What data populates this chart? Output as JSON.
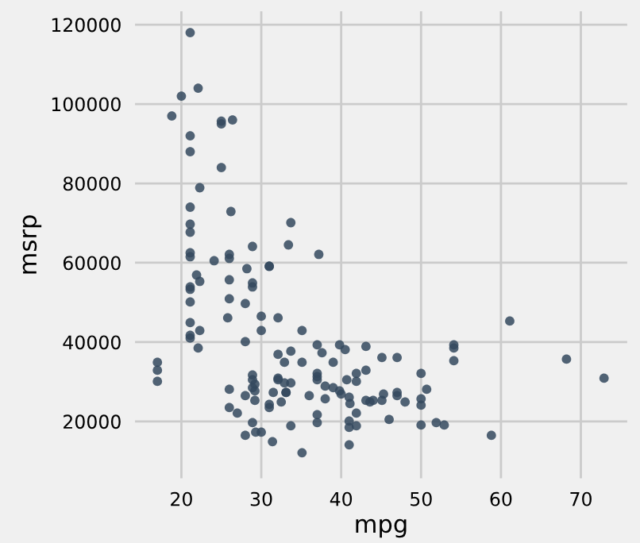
{
  "chart_data": {
    "type": "scatter",
    "xlabel": "mpg",
    "ylabel": "msrp",
    "color": "#34495e",
    "marker": "circle",
    "grid": true,
    "legend": false,
    "xlim": [
      14.2,
      75.8
    ],
    "ylim": [
      5650,
      123350
    ],
    "xticks": [
      20,
      30,
      40,
      50,
      60,
      70
    ],
    "yticks": [
      20000,
      40000,
      60000,
      80000,
      100000,
      120000
    ],
    "x": [
      21.1,
      22.1,
      20,
      18.8,
      25,
      25,
      26.4,
      21.1,
      21.1,
      25,
      22.3,
      21.1,
      26.2,
      21.1,
      21.1,
      33.7,
      33.4,
      21.1,
      21.1,
      28.9,
      37.2,
      24.1,
      26,
      26,
      31,
      31,
      21.9,
      22.3,
      26,
      21.1,
      21.1,
      28.2,
      28.9,
      28.9,
      21.1,
      26,
      28,
      21.1,
      25.8,
      30,
      32.1,
      21.1,
      21.1,
      22.3,
      30,
      22.1,
      28,
      35.1,
      37,
      37.6,
      39.8,
      40.5,
      43.1,
      32.1,
      33.7,
      32.9,
      35.1,
      39,
      17,
      17,
      17,
      28.9,
      28.9,
      29.2,
      28.9,
      32.1,
      32.1,
      32.9,
      33.7,
      37,
      37,
      37,
      38,
      39,
      39.8,
      40.7,
      41.9,
      41.9,
      43.1,
      26,
      28,
      29.2,
      29.2,
      31.5,
      33.1,
      33.1,
      36,
      38,
      40,
      41,
      41.1,
      43.1,
      43.6,
      44,
      31,
      31,
      32.5,
      26,
      27,
      37,
      37,
      41,
      41,
      41.9,
      41.9,
      28.9,
      30,
      29.3,
      28,
      31.4,
      33.7,
      41,
      35.1,
      61.1,
      54.1,
      54.1,
      54.1,
      45.1,
      47,
      50,
      50.7,
      50,
      50,
      47,
      47,
      48,
      45.3,
      45.1,
      46,
      50,
      51.9,
      52.9,
      58.8,
      68.2,
      72.9
    ],
    "values": [
      118000,
      104000,
      102000,
      97000,
      95700,
      95000,
      96000,
      92000,
      88000,
      84000,
      78900,
      74000,
      72900,
      69700,
      67700,
      70100,
      64500,
      62500,
      61500,
      64100,
      62100,
      60500,
      62100,
      61100,
      59100,
      59100,
      56900,
      55300,
      55700,
      53900,
      53300,
      58500,
      54900,
      53900,
      50100,
      50900,
      49700,
      44900,
      46100,
      46500,
      46100,
      41700,
      41000,
      42900,
      42900,
      38500,
      40100,
      42900,
      39300,
      37300,
      39300,
      38100,
      38900,
      36900,
      37700,
      34900,
      34900,
      34900,
      34900,
      32900,
      30100,
      31700,
      30500,
      29400,
      28500,
      30900,
      30500,
      29700,
      29700,
      32100,
      31300,
      30500,
      28900,
      28500,
      27700,
      30500,
      30100,
      32100,
      32900,
      28100,
      26500,
      27700,
      25300,
      27300,
      27300,
      27300,
      26500,
      25700,
      26900,
      26100,
      24500,
      25300,
      24900,
      25300,
      24300,
      23500,
      24900,
      23500,
      22100,
      21700,
      19700,
      20100,
      18500,
      18900,
      22100,
      19700,
      17300,
      17300,
      16500,
      14900,
      18900,
      14100,
      12100,
      45300,
      39300,
      38500,
      35300,
      36100,
      36100,
      32100,
      28100,
      25700,
      24100,
      27300,
      26500,
      24900,
      26900,
      25300,
      20500,
      19100,
      19700,
      19100,
      16500,
      35700,
      30900
    ]
  }
}
